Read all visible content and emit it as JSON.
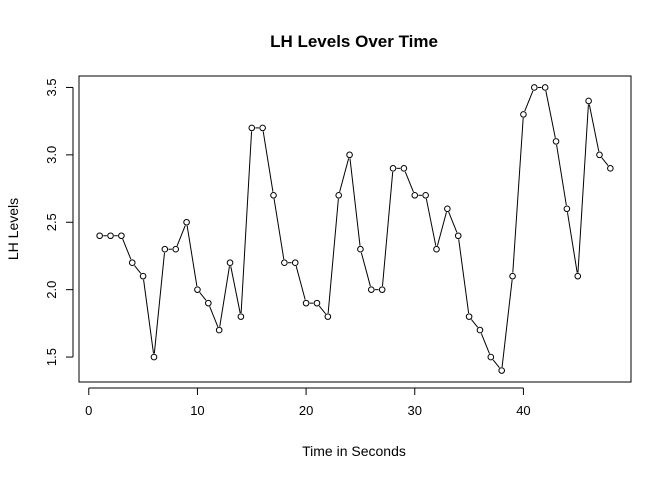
{
  "chart_data": {
    "type": "line",
    "title": "LH Levels Over Time",
    "xlabel": "Time in Seconds",
    "ylabel": "LH Levels",
    "xlim": [
      -0.9,
      49.9
    ],
    "ylim": [
      1.315,
      3.585
    ],
    "x_ticks": [
      0,
      10,
      20,
      30,
      40
    ],
    "y_ticks": [
      1.5,
      2.0,
      2.5,
      3.0,
      3.5
    ],
    "x_tick_labels": [
      "0",
      "10",
      "20",
      "30",
      "40"
    ],
    "y_tick_labels": [
      "1.5",
      "2.0",
      "2.5",
      "3.0",
      "3.5"
    ],
    "markers": "open-circle",
    "line_color": "#000000",
    "grid": false,
    "series": [
      {
        "x": [
          1,
          2,
          3,
          4,
          5,
          6,
          7,
          8,
          9,
          10,
          11,
          12,
          13,
          14,
          15,
          16,
          17,
          18,
          19,
          20,
          21,
          22,
          23,
          24,
          25,
          26,
          27,
          28,
          29,
          30,
          31,
          32,
          33,
          34,
          35,
          36,
          37,
          38,
          39,
          40,
          41,
          42,
          43,
          44,
          45,
          46,
          47,
          48
        ],
        "values": [
          2.4,
          2.4,
          2.4,
          2.2,
          2.1,
          1.5,
          2.3,
          2.3,
          2.5,
          2.0,
          1.9,
          1.7,
          2.2,
          1.8,
          3.2,
          3.2,
          2.7,
          2.2,
          2.2,
          1.9,
          1.9,
          1.8,
          2.7,
          3.0,
          2.3,
          2.0,
          2.0,
          2.9,
          2.9,
          2.7,
          2.7,
          2.3,
          2.6,
          2.4,
          1.8,
          1.7,
          1.5,
          1.4,
          2.1,
          3.3,
          3.5,
          3.5,
          3.1,
          2.6,
          2.1,
          3.4,
          3.0,
          2.9
        ]
      }
    ]
  }
}
